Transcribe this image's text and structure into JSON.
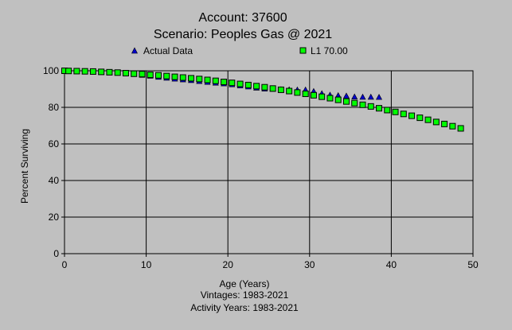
{
  "chart_data": {
    "type": "scatter",
    "title": "Account: 37600",
    "subtitle": "Scenario: Peoples Gas @ 2021",
    "xlabel": "Age (Years)",
    "ylabel": "Percent Surviving",
    "footnotes": [
      "Vintages: 1983-2021",
      "Activity Years: 1983-2021"
    ],
    "xlim": [
      0,
      50
    ],
    "ylim": [
      0,
      100
    ],
    "xticks": [
      0,
      10,
      20,
      30,
      40,
      50
    ],
    "yticks": [
      0,
      20,
      40,
      60,
      80,
      100
    ],
    "grid": true,
    "legend_placement": "top",
    "series": [
      {
        "name": "Actual Data",
        "marker": "triangle",
        "color": "#0000cc",
        "x": [
          0.5,
          1.5,
          2.5,
          3.5,
          4.5,
          5.5,
          6.5,
          7.5,
          8.5,
          9.5,
          10.5,
          11.5,
          12.5,
          13.5,
          14.5,
          15.5,
          16.5,
          17.5,
          18.5,
          19.5,
          20.5,
          21.5,
          22.5,
          23.5,
          24.5,
          25.5,
          26.5,
          27.5,
          28.5,
          29.5,
          30.5,
          31.5,
          32.5,
          33.5,
          34.5,
          35.5,
          36.5,
          37.5,
          38.5
        ],
        "y": [
          99.9,
          99.8,
          99.6,
          99.4,
          99.2,
          99.0,
          98.8,
          98.5,
          98.1,
          97.7,
          97.2,
          96.6,
          96.1,
          95.6,
          95.2,
          94.8,
          94.3,
          93.8,
          93.4,
          93.0,
          92.5,
          91.9,
          91.3,
          90.7,
          90.2,
          90.0,
          89.8,
          89.7,
          89.6,
          89.6,
          88.8,
          87.6,
          86.8,
          86.5,
          86.3,
          85.8,
          85.7,
          85.7,
          85.6
        ]
      },
      {
        "name": "L1 70.00",
        "marker": "square",
        "color": "#00ff00",
        "x": [
          0,
          0.5,
          1.5,
          2.5,
          3.5,
          4.5,
          5.5,
          6.5,
          7.5,
          8.5,
          9.5,
          10.5,
          11.5,
          12.5,
          13.5,
          14.5,
          15.5,
          16.5,
          17.5,
          18.5,
          19.5,
          20.5,
          21.5,
          22.5,
          23.5,
          24.5,
          25.5,
          26.5,
          27.5,
          28.5,
          29.5,
          30.5,
          31.5,
          32.5,
          33.5,
          34.5,
          35.5,
          36.5,
          37.5,
          38.5,
          39.5,
          40.5,
          41.5,
          42.5,
          43.5,
          44.5,
          45.5,
          46.5,
          47.5,
          48.5
        ],
        "y": [
          100,
          99.9,
          99.8,
          99.7,
          99.6,
          99.4,
          99.2,
          99.0,
          98.7,
          98.4,
          98.2,
          97.8,
          97.5,
          97.1,
          96.7,
          96.3,
          95.9,
          95.5,
          95.0,
          94.5,
          93.9,
          93.4,
          92.8,
          92.2,
          91.6,
          91.0,
          90.3,
          89.6,
          88.9,
          88.1,
          87.4,
          86.6,
          85.8,
          85.0,
          84.1,
          83.2,
          82.3,
          81.4,
          80.5,
          79.5,
          78.5,
          77.5,
          76.4,
          75.4,
          74.3,
          73.2,
          72.0,
          70.9,
          69.7,
          68.5
        ]
      }
    ]
  }
}
